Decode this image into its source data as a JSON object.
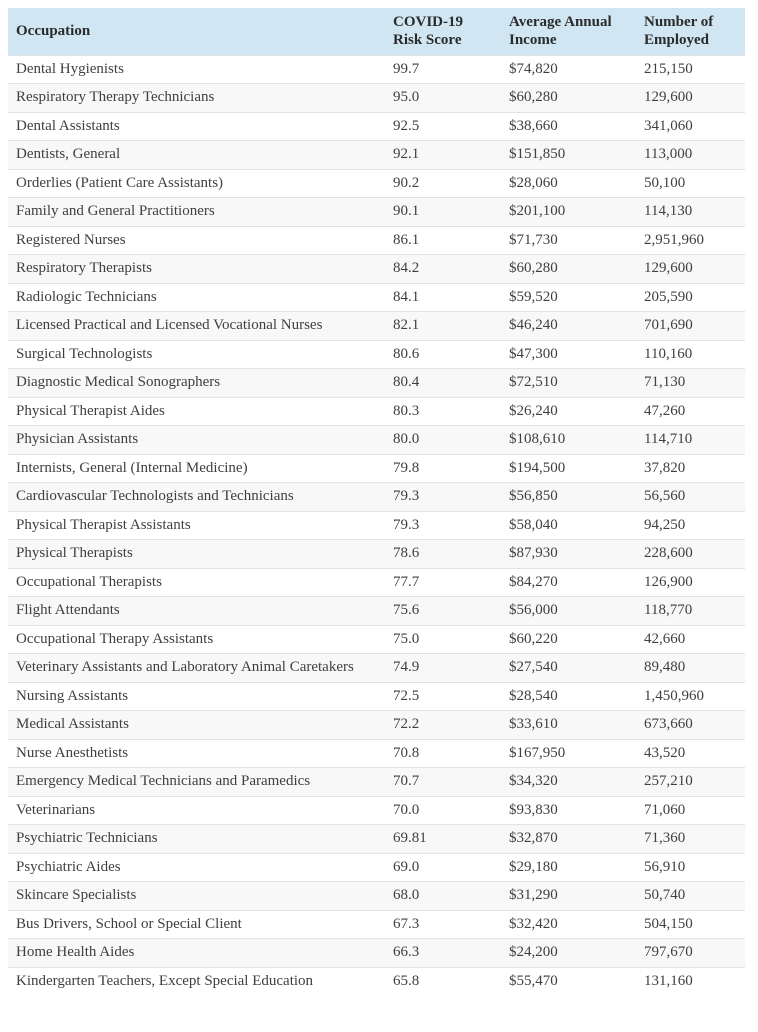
{
  "chart_data": {
    "type": "table",
    "columns": [
      {
        "key": "occupation",
        "label": "Occupation"
      },
      {
        "key": "risk_score",
        "label": "COVID-19 Risk Score"
      },
      {
        "key": "income",
        "label": "Average Annual Income"
      },
      {
        "key": "employed",
        "label": "Number of Employed"
      }
    ],
    "rows": [
      [
        "Dental Hygienists",
        "99.7",
        "$74,820",
        "215,150"
      ],
      [
        "Respiratory Therapy Technicians",
        "95.0",
        "$60,280",
        "129,600"
      ],
      [
        "Dental Assistants",
        "92.5",
        "$38,660",
        "341,060"
      ],
      [
        "Dentists, General",
        "92.1",
        "$151,850",
        "113,000"
      ],
      [
        "Orderlies (Patient Care Assistants)",
        "90.2",
        "$28,060",
        "50,100"
      ],
      [
        "Family and General Practitioners",
        "90.1",
        "$201,100",
        "114,130"
      ],
      [
        "Registered Nurses",
        "86.1",
        "$71,730",
        "2,951,960"
      ],
      [
        "Respiratory Therapists",
        "84.2",
        "$60,280",
        "129,600"
      ],
      [
        "Radiologic Technicians",
        "84.1",
        "$59,520",
        "205,590"
      ],
      [
        "Licensed Practical and Licensed Vocational Nurses",
        "82.1",
        "$46,240",
        "701,690"
      ],
      [
        "Surgical Technologists",
        "80.6",
        "$47,300",
        "110,160"
      ],
      [
        "Diagnostic Medical Sonographers",
        "80.4",
        "$72,510",
        "71,130"
      ],
      [
        "Physical Therapist Aides",
        "80.3",
        "$26,240",
        "47,260"
      ],
      [
        "Physician Assistants",
        "80.0",
        "$108,610",
        "114,710"
      ],
      [
        "Internists, General (Internal Medicine)",
        "79.8",
        "$194,500",
        "37,820"
      ],
      [
        "Cardiovascular Technologists and Technicians",
        "79.3",
        "$56,850",
        "56,560"
      ],
      [
        "Physical Therapist Assistants",
        "79.3",
        "$58,040",
        "94,250"
      ],
      [
        "Physical Therapists",
        "78.6",
        "$87,930",
        "228,600"
      ],
      [
        "Occupational Therapists",
        "77.7",
        "$84,270",
        "126,900"
      ],
      [
        "Flight Attendants",
        "75.6",
        "$56,000",
        "118,770"
      ],
      [
        "Occupational Therapy Assistants",
        "75.0",
        "$60,220",
        "42,660"
      ],
      [
        "Veterinary Assistants and Laboratory Animal Caretakers",
        "74.9",
        "$27,540",
        "89,480"
      ],
      [
        "Nursing Assistants",
        "72.5",
        "$28,540",
        "1,450,960"
      ],
      [
        "Medical Assistants",
        "72.2",
        "$33,610",
        "673,660"
      ],
      [
        "Nurse Anesthetists",
        "70.8",
        "$167,950",
        "43,520"
      ],
      [
        "Emergency Medical Technicians and Paramedics",
        "70.7",
        "$34,320",
        "257,210"
      ],
      [
        "Veterinarians",
        "70.0",
        "$93,830",
        "71,060"
      ],
      [
        "Psychiatric Technicians",
        "69.81",
        "$32,870",
        "71,360"
      ],
      [
        "Psychiatric Aides",
        "69.0",
        "$29,180",
        "56,910"
      ],
      [
        "Skincare Specialists",
        "68.0",
        "$31,290",
        "50,740"
      ],
      [
        "Bus Drivers, School or Special Client",
        "67.3",
        "$32,420",
        "504,150"
      ],
      [
        "Home Health Aides",
        "66.3",
        "$24,200",
        "797,670"
      ],
      [
        "Kindergarten Teachers, Except Special Education",
        "65.8",
        "$55,470",
        "131,160"
      ]
    ]
  },
  "colors": {
    "header_bg": "#d0e7f3",
    "alt_row_bg": "#f8f8f8",
    "border": "#e2e2e2",
    "text": "#3f3f3f",
    "header_text": "#2b2b2b",
    "page_bg": "#ffffff"
  }
}
